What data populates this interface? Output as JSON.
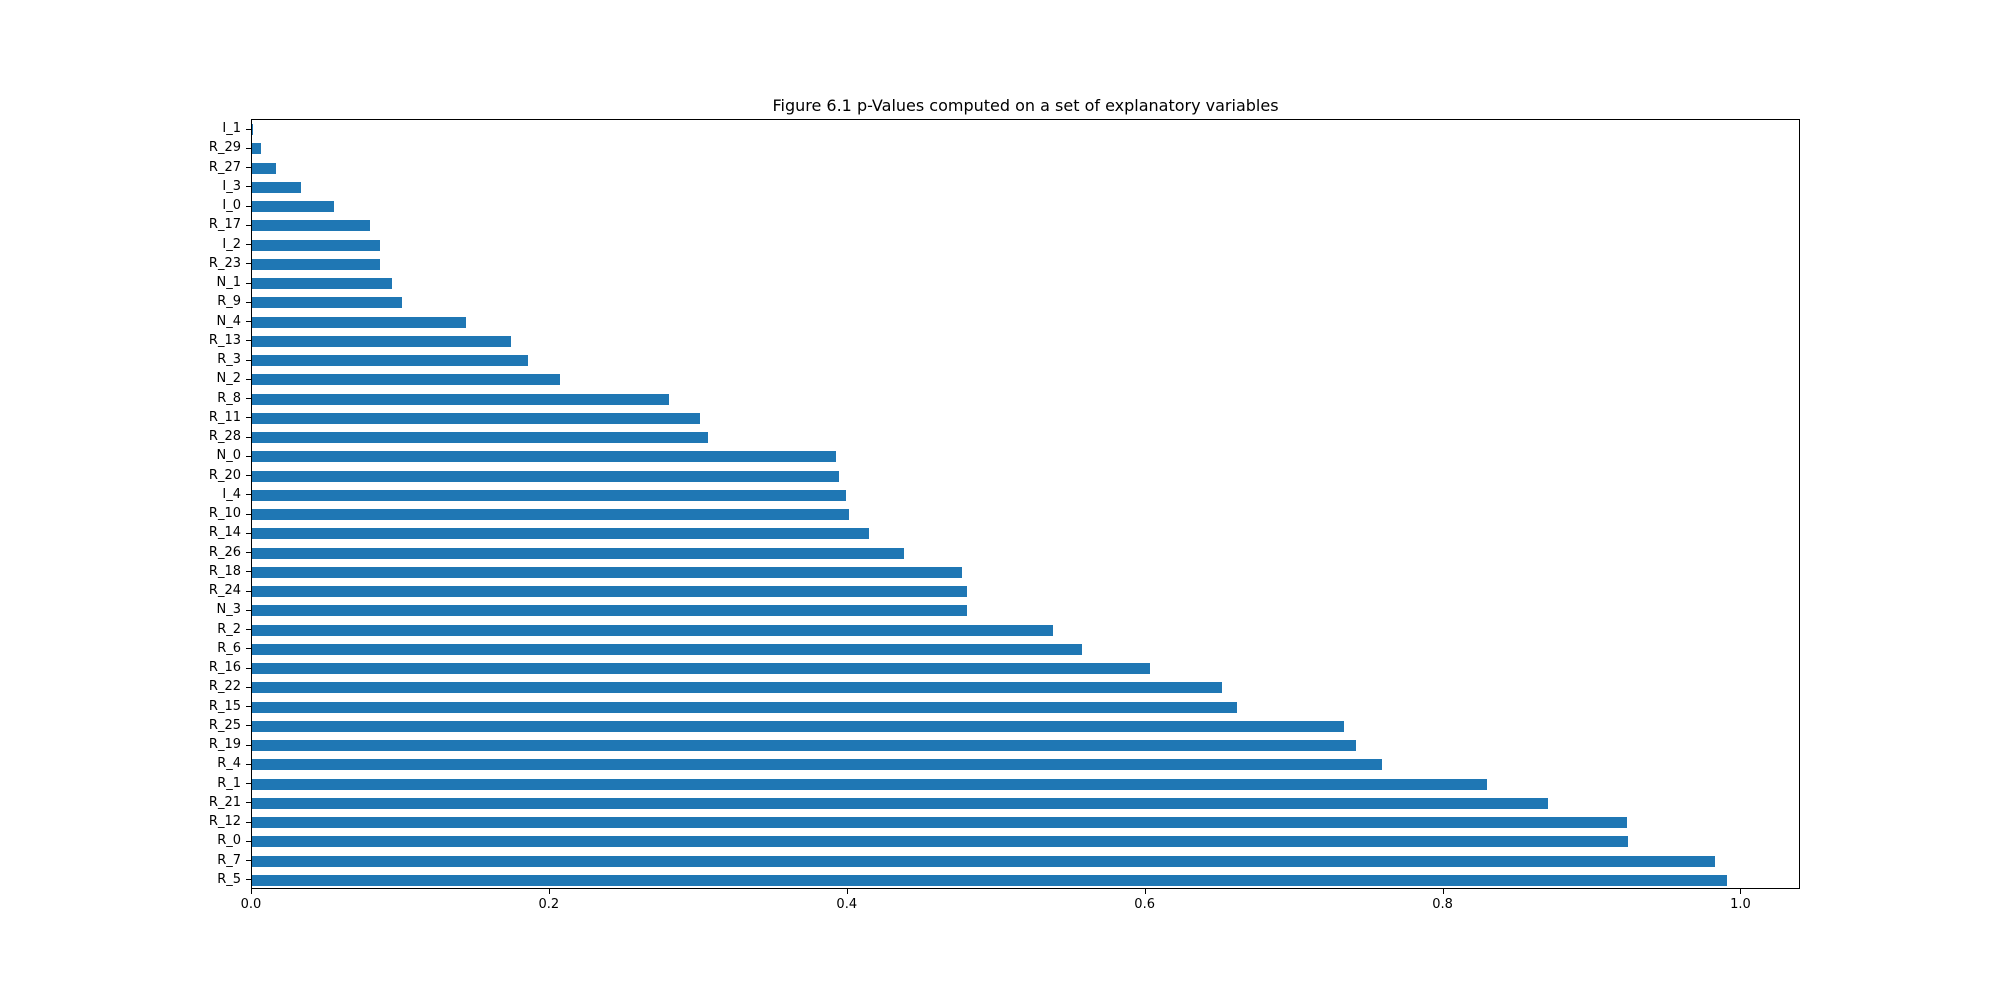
{
  "figure": {
    "background": "#ffffff",
    "title": "Figure 6.1 p-Values computed on a set of explanatory variables"
  },
  "chart_data": {
    "type": "bar",
    "orientation": "horizontal",
    "title": "Figure 6.1 p-Values computed on a set of explanatory variables",
    "xlabel": "",
    "ylabel": "",
    "grid": false,
    "legend": null,
    "bar_color": "#1f77b4",
    "xlim": [
      0.0,
      1.04
    ],
    "x_ticks": [
      0.0,
      0.2,
      0.4,
      0.6,
      0.8,
      1.0
    ],
    "x_tick_labels": [
      "0.0",
      "0.2",
      "0.4",
      "0.6",
      "0.8",
      "1.0"
    ],
    "categories_top_to_bottom": [
      "I_1",
      "R_29",
      "R_27",
      "I_3",
      "I_0",
      "R_17",
      "I_2",
      "R_23",
      "N_1",
      "R_9",
      "N_4",
      "R_13",
      "R_3",
      "N_2",
      "R_8",
      "R_11",
      "R_28",
      "N_0",
      "R_20",
      "I_4",
      "R_10",
      "R_14",
      "R_26",
      "R_18",
      "R_24",
      "N_3",
      "R_2",
      "R_6",
      "R_16",
      "R_22",
      "R_15",
      "R_25",
      "R_19",
      "R_4",
      "R_1",
      "R_21",
      "R_12",
      "R_0",
      "R_7",
      "R_5"
    ],
    "values": [
      0.001,
      0.006,
      0.016,
      0.033,
      0.055,
      0.079,
      0.086,
      0.086,
      0.094,
      0.101,
      0.144,
      0.174,
      0.185,
      0.207,
      0.28,
      0.301,
      0.306,
      0.392,
      0.394,
      0.399,
      0.401,
      0.414,
      0.438,
      0.477,
      0.48,
      0.48,
      0.538,
      0.557,
      0.603,
      0.651,
      0.661,
      0.733,
      0.741,
      0.759,
      0.829,
      0.87,
      0.923,
      0.924,
      0.982,
      0.99
    ]
  }
}
